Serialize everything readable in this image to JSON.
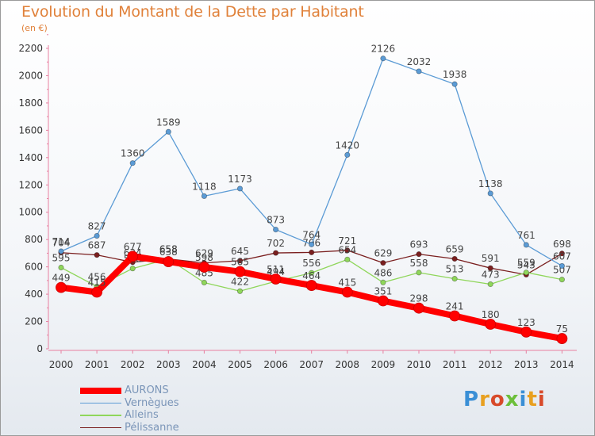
{
  "title": "Evolution du Montant de la Dette par Habitant",
  "subtitle": "(en €)",
  "logo": {
    "text": "Proxiti"
  },
  "chart_data": {
    "type": "line",
    "x": [
      "2000",
      "2001",
      "2002",
      "2003",
      "2004",
      "2005",
      "2006",
      "2007",
      "2008",
      "2009",
      "2010",
      "2011",
      "2012",
      "2013",
      "2014"
    ],
    "ylim": [
      0,
      2200
    ],
    "yticks": [
      0,
      200,
      400,
      600,
      800,
      1000,
      1200,
      1400,
      1600,
      1800,
      2000,
      2200
    ],
    "grid": false,
    "legend_position": "bottom-left",
    "series": [
      {
        "name": "Pélissanne",
        "color": "#7a1f1f",
        "values": [
          704,
          687,
          634,
          658,
          629,
          645,
          702,
          706,
          721,
          629,
          693,
          659,
          591,
          543,
          698
        ]
      },
      {
        "name": "Alleins",
        "color": "#8fd65a",
        "values": [
          595,
          456,
          588,
          658,
          485,
          422,
          494,
          556,
          654,
          486,
          558,
          513,
          473,
          559,
          507
        ]
      },
      {
        "name": "Vernègues",
        "color": "#5b9bd5",
        "values": [
          714,
          827,
          1360,
          1589,
          1118,
          1173,
          873,
          764,
          1420,
          2126,
          2032,
          1938,
          1138,
          761,
          607
        ]
      },
      {
        "name": "AURONS",
        "color": "#ff0000",
        "values": [
          449,
          415,
          677,
          638,
          598,
          565,
          511,
          464,
          415,
          351,
          298,
          241,
          180,
          123,
          75
        ]
      }
    ]
  }
}
